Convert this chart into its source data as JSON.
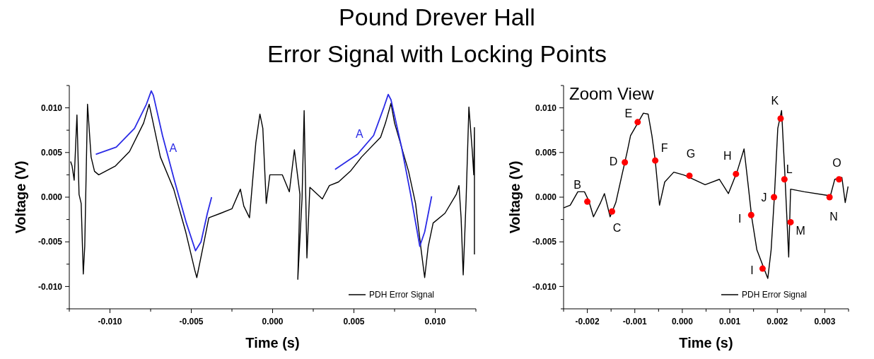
{
  "chart_data": [
    {
      "type": "line",
      "title": "Pound Drever Hall",
      "subtitle": "Error Signal with Locking Points",
      "xlabel": "Time (s)",
      "ylabel": "Voltage (V)",
      "xlim": [
        -0.0125,
        0.0125
      ],
      "ylim": [
        -0.0125,
        0.0125
      ],
      "xticks": [
        {
          "value": -0.0125,
          "label": null
        },
        {
          "value": -0.01,
          "label": "-0.010"
        },
        {
          "value": -0.0075,
          "label": null
        },
        {
          "value": -0.005,
          "label": "-0.005"
        },
        {
          "value": -0.0025,
          "label": null
        },
        {
          "value": 0,
          "label": "0.000"
        },
        {
          "value": 0.0025,
          "label": null
        },
        {
          "value": 0.005,
          "label": "0.005"
        },
        {
          "value": 0.0075,
          "label": null
        },
        {
          "value": 0.01,
          "label": "0.010"
        },
        {
          "value": 0.0125,
          "label": null
        }
      ],
      "yticks": [
        {
          "value": -0.0125,
          "label": null
        },
        {
          "value": -0.01,
          "label": "-0.010"
        },
        {
          "value": -0.0075,
          "label": null
        },
        {
          "value": -0.005,
          "label": "-0.005"
        },
        {
          "value": -0.0025,
          "label": null
        },
        {
          "value": 0,
          "label": "0.000"
        },
        {
          "value": 0.0025,
          "label": null
        },
        {
          "value": 0.005,
          "label": "0.005"
        },
        {
          "value": 0.0075,
          "label": null
        },
        {
          "value": 0.01,
          "label": "0.010"
        },
        {
          "value": 0.0125,
          "label": null
        }
      ],
      "legend": "bottom right",
      "grid": false,
      "annotations": [
        {
          "text": "A",
          "x": -0.00677,
          "y": 0.0069
        },
        {
          "text": "A",
          "x": 0.00621,
          "y": 0.0069
        }
      ],
      "series": [
        {
          "name": "PDH Error Signal",
          "color": "#000000",
          "x": [
            -0.01242,
            -0.01233,
            -0.0122,
            -0.01203,
            -0.0119,
            -0.01177,
            -0.01164,
            -0.01155,
            -0.01138,
            -0.01116,
            -0.01095,
            -0.01069,
            -0.00966,
            -0.0088,
            -0.00793,
            -0.00759,
            -0.00746,
            -0.0069,
            -0.00608,
            -0.00534,
            -0.00478,
            -0.00466,
            -0.00427,
            -0.00392,
            -0.00319,
            -0.0025,
            -0.00198,
            -0.00177,
            -0.00142,
            -0.00103,
            -0.00078,
            -0.0006,
            -0.00039,
            -0.00017,
            0.0001,
            0.0003,
            0.0006,
            0.00103,
            0.00134,
            0.00168,
            0.00155,
            0.00181,
            0.00194,
            0.00211,
            0.00229,
            0.00306,
            0.00349,
            0.00405,
            0.00478,
            0.00547,
            0.00664,
            0.00694,
            0.00728,
            0.0075,
            0.00836,
            0.00879,
            0.00914,
            0.00935,
            0.00957,
            0.00987,
            0.0106,
            0.01129,
            0.01146,
            0.01159,
            0.01172,
            0.0119,
            0.01207,
            0.01228,
            0.01237,
            0.01241,
            0.01241
          ],
          "values": [
            0.004,
            0.0035,
            0.0019,
            0.0092,
            0.0003,
            -0.0007,
            -0.0086,
            -0.0055,
            0.0104,
            0.0045,
            0.0029,
            0.0025,
            0.0035,
            0.0051,
            0.0083,
            0.0104,
            0.0093,
            0.0045,
            0.0009,
            -0.0039,
            -0.0082,
            -0.009,
            -0.0055,
            -0.0023,
            -0.0018,
            -0.0013,
            0.0009,
            -0.001,
            -0.0023,
            0.0061,
            0.0093,
            0.0077,
            -0.0007,
            0.0025,
            0.0025,
            0.0025,
            0.0025,
            0.0006,
            0.0053,
            0.0003,
            -0.0092,
            -0.0002,
            0.0097,
            -0.0068,
            0.0011,
            -0.0002,
            0.0013,
            0.0017,
            0.0029,
            0.0045,
            0.0067,
            0.0083,
            0.0105,
            0.0083,
            0.0029,
            -0.0007,
            -0.006,
            -0.009,
            -0.0055,
            -0.0029,
            -0.0018,
            0.0003,
            0.0013,
            -0.0023,
            -0.0087,
            -0.0002,
            0.0101,
            0.0051,
            0.0025,
            0.0078,
            -0.0064
          ]
        },
        {
          "color": "#2b2be6",
          "x": [
            -0.01087,
            -0.00961,
            -0.00849,
            -0.00776,
            -0.00746,
            -0.00733,
            -0.00677,
            -0.00604,
            -0.0053,
            -0.00474,
            -0.0044,
            -0.00401,
            -0.00375
          ],
          "values": [
            0.0048,
            0.0056,
            0.0077,
            0.0104,
            0.0119,
            0.0114,
            0.0069,
            0.0019,
            -0.0029,
            -0.006,
            -0.005,
            -0.0018,
            0.0
          ]
        },
        {
          "color": "#2b2be6",
          "x": [
            0.00384,
            0.00522,
            0.00621,
            0.00685,
            0.00711,
            0.00728,
            0.00793,
            0.00849,
            0.00905,
            0.00935,
            0.00978
          ],
          "values": [
            0.0031,
            0.0048,
            0.0069,
            0.0101,
            0.0115,
            0.0109,
            0.0056,
            0.0003,
            -0.0055,
            -0.0039,
            0.0001
          ]
        }
      ]
    },
    {
      "type": "line",
      "title": "Zoom View",
      "xlabel": "Time (s)",
      "ylabel": "Voltage (V)",
      "xlim": [
        -0.0025,
        0.0035
      ],
      "ylim": [
        -0.0125,
        0.0125
      ],
      "xticks": [
        {
          "value": -0.0025,
          "label": null
        },
        {
          "value": -0.002,
          "label": "-0.002"
        },
        {
          "value": -0.0015,
          "label": null
        },
        {
          "value": -0.001,
          "label": "-0.001"
        },
        {
          "value": -0.0005,
          "label": null
        },
        {
          "value": 0,
          "label": "0.000"
        },
        {
          "value": 0.0005,
          "label": null
        },
        {
          "value": 0.001,
          "label": "0.001"
        },
        {
          "value": 0.0015,
          "label": null
        },
        {
          "value": 0.002,
          "label": "0.002"
        },
        {
          "value": 0.0025,
          "label": null
        },
        {
          "value": 0.003,
          "label": "0.003"
        },
        {
          "value": 0.0035,
          "label": null
        }
      ],
      "yticks": [
        {
          "value": -0.0125,
          "label": null
        },
        {
          "value": -0.01,
          "label": "-0.010"
        },
        {
          "value": -0.0075,
          "label": null
        },
        {
          "value": -0.005,
          "label": "-0.005"
        },
        {
          "value": -0.0025,
          "label": null
        },
        {
          "value": 0,
          "label": "0.000"
        },
        {
          "value": 0.0025,
          "label": null
        },
        {
          "value": 0.005,
          "label": "0.005"
        },
        {
          "value": 0.0075,
          "label": null
        },
        {
          "value": 0.01,
          "label": "0.010"
        },
        {
          "value": 0.0125,
          "label": null
        }
      ],
      "legend": "bottom right",
      "grid": false,
      "annotations": [
        {
          "text": "B",
          "x": -0.002,
          "y": -0.0005
        },
        {
          "text": "C",
          "x": -0.00148,
          "y": -0.0016
        },
        {
          "text": "D",
          "x": -0.00121,
          "y": 0.0039
        },
        {
          "text": "E",
          "x": -0.00094,
          "y": 0.0084
        },
        {
          "text": "F",
          "x": -0.00057,
          "y": 0.0041
        },
        {
          "text": "G",
          "x": 0.00015,
          "y": 0.0024
        },
        {
          "text": "H",
          "x": 0.00113,
          "y": 0.0026
        },
        {
          "text": "I",
          "x": 0.00145,
          "y": -0.002
        },
        {
          "text": "I",
          "x": 0.00169,
          "y": -0.008
        },
        {
          "text": "J",
          "x": 0.00193,
          "y": 0.0
        },
        {
          "text": "K",
          "x": 0.00207,
          "y": 0.0088
        },
        {
          "text": "L",
          "x": 0.00215,
          "y": 0.002
        },
        {
          "text": "M",
          "x": 0.00228,
          "y": -0.0028
        },
        {
          "text": "N",
          "x": 0.0031,
          "y": 0.0
        },
        {
          "text": "O",
          "x": 0.0033,
          "y": 0.002
        }
      ],
      "series": [
        {
          "name": "PDH Error Signal",
          "color": "#000000",
          "x": [
            -0.0025,
            -0.00236,
            -0.0022,
            -0.00206,
            -0.00197,
            -0.00187,
            -0.00172,
            -0.00164,
            -0.00152,
            -0.0014,
            -0.00127,
            -0.00116,
            -0.00109,
            -0.00097,
            -0.00082,
            -0.00072,
            -0.00064,
            -0.00057,
            -0.00048,
            -0.00037,
            -0.00018,
            2e-05,
            7e-05,
            0.00048,
            0.00078,
            0.00097,
            0.00115,
            0.0013,
            0.00139,
            0.00146,
            0.00157,
            0.00172,
            0.0018,
            0.00187,
            0.00194,
            0.00201,
            0.00209,
            0.00216,
            0.00224,
            0.00228,
            0.00257,
            0.00306,
            0.0031,
            0.00321,
            0.00336,
            0.00343,
            0.00349
          ],
          "values": [
            -0.0012,
            -0.0009,
            0.0006,
            0.0006,
            -0.0004,
            -0.0022,
            -0.0006,
            0.0004,
            -0.0022,
            -0.0006,
            0.0025,
            0.0051,
            0.0069,
            0.008,
            0.0094,
            0.0093,
            0.0069,
            0.0041,
            -0.0009,
            0.0017,
            0.0028,
            0.0025,
            0.0024,
            0.0014,
            0.002,
            0.0004,
            0.0028,
            0.0054,
            0.0012,
            -0.0022,
            -0.0059,
            -0.008,
            -0.0091,
            -0.0059,
            0.0002,
            0.0077,
            0.0097,
            0.0025,
            -0.0067,
            0.0009,
            0.0006,
            0.0002,
            -0.0002,
            0.002,
            0.0022,
            -0.0006,
            0.0012
          ]
        },
        {
          "type": "scatter",
          "marker": "circle",
          "color": "#ff0000",
          "x": [
            -0.002,
            -0.00148,
            -0.00121,
            -0.00094,
            -0.00057,
            0.00015,
            0.00113,
            0.00145,
            0.00169,
            0.00193,
            0.00207,
            0.00215,
            0.00228,
            0.0031,
            0.0033
          ],
          "values": [
            -0.0005,
            -0.0016,
            0.0039,
            0.0084,
            0.0041,
            0.0024,
            0.0026,
            -0.002,
            -0.008,
            0.0,
            0.0088,
            0.002,
            -0.0028,
            0.0,
            0.002
          ]
        }
      ]
    }
  ]
}
